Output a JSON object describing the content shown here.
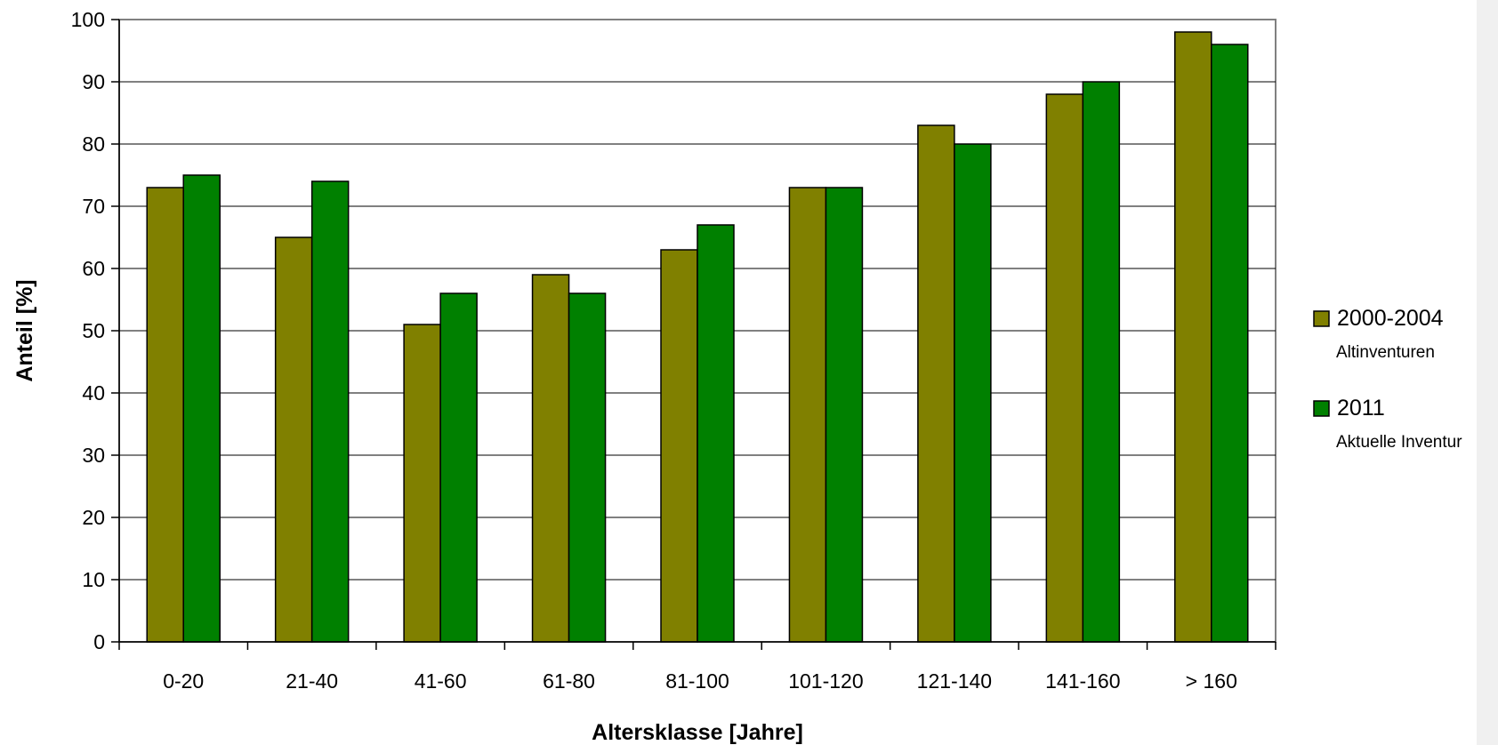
{
  "chart_data": {
    "type": "bar",
    "categories": [
      "0-20",
      "21-40",
      "41-60",
      "61-80",
      "81-100",
      "101-120",
      "121-140",
      "141-160",
      "> 160"
    ],
    "series": [
      {
        "name": "2000-2004",
        "subtitle": "Altinventuren",
        "color": "#808000",
        "values": [
          73,
          65,
          51,
          59,
          63,
          73,
          83,
          88,
          98
        ]
      },
      {
        "name": "2011",
        "subtitle": "Aktuelle Inventur",
        "color": "#008000",
        "values": [
          75,
          74,
          56,
          56,
          67,
          73,
          80,
          90,
          96
        ]
      }
    ],
    "xlabel": "Altersklasse [Jahre]",
    "ylabel": "Anteil [%]",
    "ylim": [
      0,
      100
    ],
    "yticks": [
      0,
      10,
      20,
      30,
      40,
      50,
      60,
      70,
      80,
      90,
      100
    ],
    "grid": true,
    "legend": "right"
  }
}
